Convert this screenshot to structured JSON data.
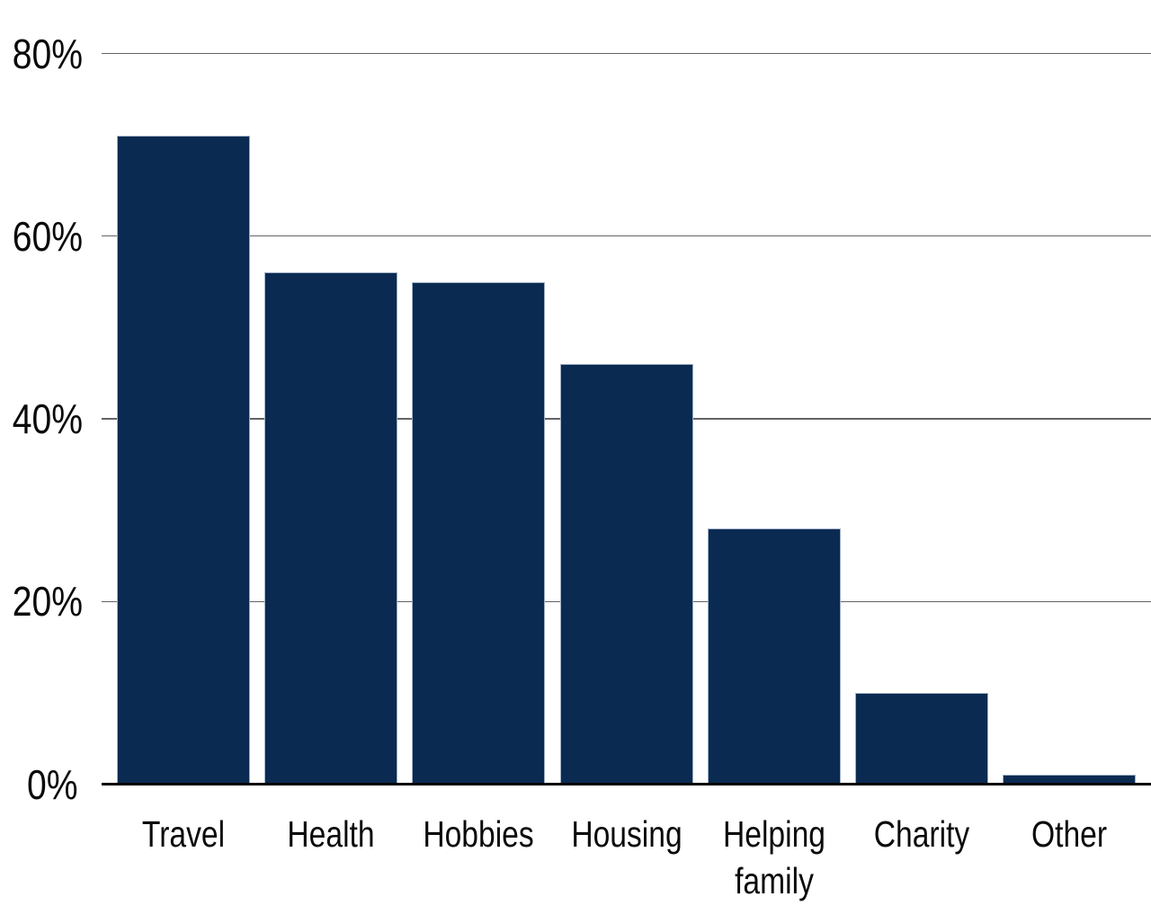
{
  "chart_data": {
    "type": "bar",
    "title": "",
    "xlabel": "",
    "ylabel": "",
    "unit": "%",
    "categories": [
      "Travel",
      "Health",
      "Hobbies",
      "Housing",
      "Helping family",
      "Charity",
      "Other"
    ],
    "category_lines": [
      [
        "Travel"
      ],
      [
        "Health"
      ],
      [
        "Hobbies"
      ],
      [
        "Housing"
      ],
      [
        "Helping",
        "family"
      ],
      [
        "Charity"
      ],
      [
        "Other"
      ]
    ],
    "values": [
      71,
      56,
      55,
      46,
      28,
      10,
      1
    ],
    "ylim": [
      0,
      80
    ],
    "yticks": [
      {
        "label": "0%",
        "value": 0
      },
      {
        "label": "20%",
        "value": 20
      },
      {
        "label": "40%",
        "value": 40
      },
      {
        "label": "60%",
        "value": 60
      },
      {
        "label": "80%",
        "value": 80
      }
    ],
    "grid": true,
    "legend": false,
    "legend_position": "none",
    "colors": {
      "bar": "#0a2a52",
      "bar_edge": "#9fb0c4",
      "gridline": "#636363",
      "axis_line": "#000000",
      "text": "#0a0a0a",
      "background": "#ffffff"
    }
  }
}
